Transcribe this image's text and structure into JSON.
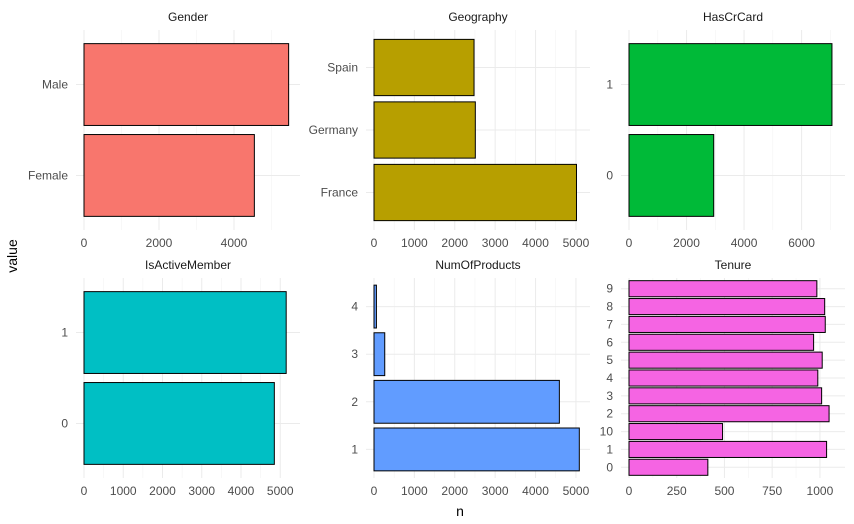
{
  "chart_data": {
    "type": "bar",
    "orientation": "horizontal",
    "xlabel": "n",
    "ylabel": "value",
    "grid": true,
    "facets": [
      {
        "title": "Gender",
        "color": "#F8766D",
        "categories": [
          "Female",
          "Male"
        ],
        "values": [
          4543,
          5457
        ],
        "xlim": [
          0,
          5600
        ],
        "xticks": [
          0,
          2000,
          4000
        ]
      },
      {
        "title": "Geography",
        "color": "#B79F00",
        "categories": [
          "France",
          "Germany",
          "Spain"
        ],
        "values": [
          5014,
          2509,
          2477
        ],
        "xlim": [
          0,
          5200
        ],
        "xticks": [
          0,
          1000,
          2000,
          3000,
          4000,
          5000
        ]
      },
      {
        "title": "HasCrCard",
        "color": "#00BA38",
        "categories": [
          "0",
          "1"
        ],
        "values": [
          2945,
          7055
        ],
        "xlim": [
          0,
          7300
        ],
        "xticks": [
          0,
          2000,
          4000,
          6000
        ]
      },
      {
        "title": "IsActiveMember",
        "color": "#00BFC4",
        "categories": [
          "0",
          "1"
        ],
        "values": [
          4849,
          5151
        ],
        "xlim": [
          0,
          5350
        ],
        "xticks": [
          0,
          1000,
          2000,
          3000,
          4000,
          5000
        ]
      },
      {
        "title": "NumOfProducts",
        "color": "#619CFF",
        "categories": [
          "1",
          "2",
          "3",
          "4"
        ],
        "values": [
          5084,
          4590,
          266,
          60
        ],
        "xlim": [
          0,
          5200
        ],
        "xticks": [
          0,
          1000,
          2000,
          3000,
          4000,
          5000
        ]
      },
      {
        "title": "Tenure",
        "color": "#F564E3",
        "categories": [
          "0",
          "1",
          "10",
          "2",
          "3",
          "4",
          "5",
          "6",
          "7",
          "8",
          "9"
        ],
        "values": [
          413,
          1035,
          490,
          1048,
          1009,
          989,
          1012,
          967,
          1028,
          1025,
          984
        ],
        "xlim": [
          0,
          1100
        ],
        "xticks": [
          0,
          250,
          500,
          750,
          1000
        ]
      }
    ]
  }
}
